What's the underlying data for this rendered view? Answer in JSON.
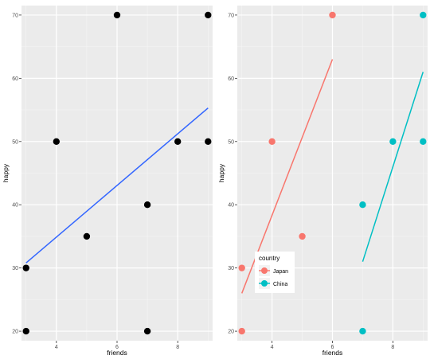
{
  "chart_data": [
    {
      "type": "scatter",
      "title": "",
      "xlabel": "friends",
      "ylabel": "happy",
      "xlim": [
        2.85,
        9.15
      ],
      "ylim": [
        18.5,
        71.5
      ],
      "xticks": [
        4,
        6,
        8
      ],
      "yticks": [
        20,
        30,
        40,
        50,
        60,
        70
      ],
      "x_tick_labels": [
        "4",
        "6",
        "8"
      ],
      "y_tick_labels": [
        "20",
        "30",
        "40",
        "50",
        "60",
        "70"
      ],
      "grid": true,
      "point_color": "#000000",
      "line_color": "#3366FF",
      "points": [
        {
          "x": 3,
          "y": 20
        },
        {
          "x": 3,
          "y": 30
        },
        {
          "x": 4,
          "y": 50
        },
        {
          "x": 5,
          "y": 35
        },
        {
          "x": 6,
          "y": 70
        },
        {
          "x": 7,
          "y": 40
        },
        {
          "x": 7,
          "y": 20
        },
        {
          "x": 8,
          "y": 50
        },
        {
          "x": 9,
          "y": 50
        },
        {
          "x": 9,
          "y": 70
        }
      ],
      "fit_line": {
        "x": [
          3,
          9
        ],
        "y": [
          30.8,
          55.3
        ]
      }
    },
    {
      "type": "scatter",
      "title": "",
      "xlabel": "friends",
      "ylabel": "happy",
      "xlim": [
        2.85,
        9.15
      ],
      "ylim": [
        18.5,
        71.5
      ],
      "xticks": [
        4,
        6,
        8
      ],
      "yticks": [
        20,
        30,
        40,
        50,
        60,
        70
      ],
      "x_tick_labels": [
        "4",
        "6",
        "8"
      ],
      "y_tick_labels": [
        "20",
        "30",
        "40",
        "50",
        "60",
        "70"
      ],
      "grid": true,
      "legend": {
        "title": "country",
        "position": "bottom-left"
      },
      "series": [
        {
          "name": "Japan",
          "color": "#F8766D",
          "points": [
            {
              "x": 3,
              "y": 20
            },
            {
              "x": 3,
              "y": 30
            },
            {
              "x": 4,
              "y": 50
            },
            {
              "x": 5,
              "y": 35
            },
            {
              "x": 6,
              "y": 70
            }
          ],
          "fit_line": {
            "x": [
              3,
              6
            ],
            "y": [
              26,
              63
            ]
          }
        },
        {
          "name": "China",
          "color": "#00BFC4",
          "points": [
            {
              "x": 7,
              "y": 20
            },
            {
              "x": 7,
              "y": 40
            },
            {
              "x": 8,
              "y": 50
            },
            {
              "x": 9,
              "y": 50
            },
            {
              "x": 9,
              "y": 70
            }
          ],
          "fit_line": {
            "x": [
              7,
              9
            ],
            "y": [
              31,
              61
            ]
          }
        }
      ]
    }
  ]
}
